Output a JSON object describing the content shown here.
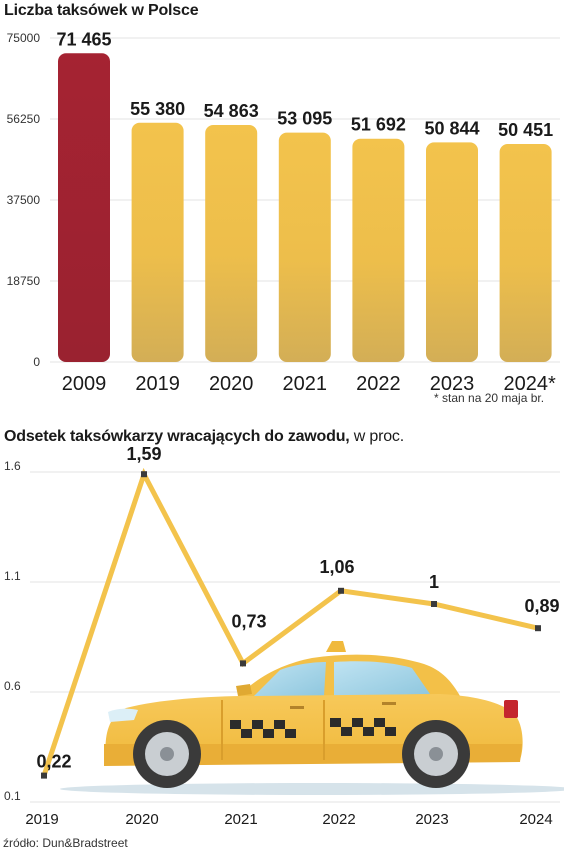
{
  "chart_data": [
    {
      "type": "bar",
      "title": "Liczba taksówek w Polsce",
      "categories": [
        "2009",
        "2019",
        "2020",
        "2021",
        "2022",
        "2023",
        "2024*"
      ],
      "values": [
        71465,
        55380,
        54863,
        53095,
        51692,
        50844,
        50451
      ],
      "value_labels": [
        "71 465",
        "55 380",
        "54 863",
        "53 095",
        "51 692",
        "50 844",
        "50 451"
      ],
      "yticks": [
        "75000",
        "56250",
        "37500",
        "18750",
        "0"
      ],
      "ylim": [
        0,
        75000
      ],
      "grid": true,
      "highlight_color": "#A52332",
      "bar_color": "#F0C24A",
      "note": "* stan na 20 maja br."
    },
    {
      "type": "line",
      "title": "Odsetek taksówkarzy wracających do zawodu,",
      "subtitle": "w proc.",
      "x": [
        "2019",
        "2020",
        "2021",
        "2022",
        "2023",
        "2024"
      ],
      "values": [
        0.22,
        1.59,
        0.73,
        1.06,
        1,
        0.89
      ],
      "value_labels": [
        "0,22",
        "1,59",
        "0,73",
        "1,06",
        "1",
        "0,89"
      ],
      "yticks": [
        "1.6",
        "1.1",
        "0.6",
        "0.1"
      ],
      "ylim": [
        0.1,
        1.6
      ],
      "grid": true,
      "line_color": "#F3C34C"
    }
  ],
  "source": "źródło: Dun&Bradstreet",
  "illustration": "taxi-car"
}
